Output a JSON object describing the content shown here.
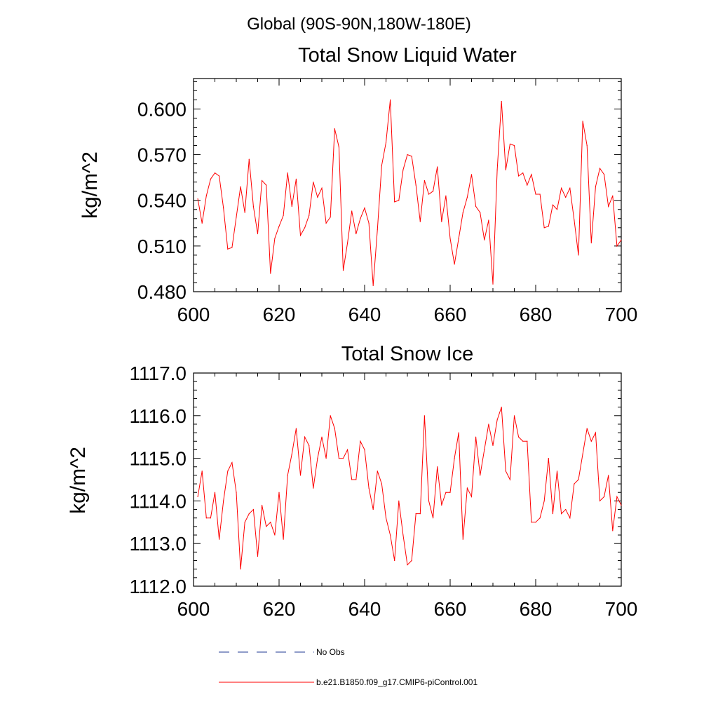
{
  "figure": {
    "suptitle": "Global (90S-90N,180W-180E)",
    "colors": {
      "line": "#ff0000",
      "dash": "#1f3a93",
      "axis": "#000000"
    },
    "legend": {
      "items": [
        {
          "label": "No Obs",
          "style": "dashed",
          "color": "#1f3a93"
        },
        {
          "label": "b.e21.B1850.f09_g17.CMIP6-piControl.001",
          "style": "solid",
          "color": "#ff0000"
        }
      ]
    }
  },
  "chart_data": [
    {
      "type": "line",
      "title": "Total Snow Liquid Water",
      "xlabel": "",
      "ylabel": "kg/m^2",
      "xlim": [
        600,
        700
      ],
      "ylim": [
        0.48,
        0.62
      ],
      "xticks": [
        600,
        620,
        640,
        660,
        680,
        700
      ],
      "xtick_labels": [
        "600",
        "620",
        "640",
        "660",
        "680",
        "700"
      ],
      "yticks": [
        0.48,
        0.51,
        0.54,
        0.57,
        0.6
      ],
      "ytick_labels": [
        "0.480",
        "0.510",
        "0.540",
        "0.570",
        "0.600"
      ],
      "x_start": 601,
      "series": [
        {
          "name": "b.e21.B1850.f09_g17.CMIP6-piControl.001",
          "values": [
            0.541,
            0.525,
            0.543,
            0.554,
            0.558,
            0.556,
            0.535,
            0.508,
            0.509,
            0.529,
            0.549,
            0.532,
            0.567,
            0.536,
            0.518,
            0.553,
            0.55,
            0.492,
            0.515,
            0.523,
            0.53,
            0.558,
            0.536,
            0.554,
            0.517,
            0.522,
            0.53,
            0.552,
            0.542,
            0.548,
            0.525,
            0.529,
            0.587,
            0.575,
            0.494,
            0.512,
            0.533,
            0.518,
            0.528,
            0.535,
            0.525,
            0.484,
            0.521,
            0.563,
            0.578,
            0.606,
            0.539,
            0.54,
            0.56,
            0.57,
            0.569,
            0.55,
            0.526,
            0.553,
            0.544,
            0.546,
            0.562,
            0.526,
            0.543,
            0.515,
            0.498,
            0.515,
            0.532,
            0.542,
            0.557,
            0.536,
            0.532,
            0.514,
            0.527,
            0.485,
            0.56,
            0.605,
            0.56,
            0.577,
            0.576,
            0.556,
            0.558,
            0.55,
            0.557,
            0.544,
            0.544,
            0.522,
            0.523,
            0.537,
            0.534,
            0.548,
            0.542,
            0.548,
            0.527,
            0.504,
            0.592,
            0.576,
            0.512,
            0.549,
            0.561,
            0.557,
            0.536,
            0.543,
            0.51,
            0.514
          ]
        }
      ]
    },
    {
      "type": "line",
      "title": "Total Snow Ice",
      "xlabel": "",
      "ylabel": "kg/m^2",
      "xlim": [
        600,
        700
      ],
      "ylim": [
        1112.0,
        1117.0
      ],
      "xticks": [
        600,
        620,
        640,
        660,
        680,
        700
      ],
      "xtick_labels": [
        "600",
        "620",
        "640",
        "660",
        "680",
        "700"
      ],
      "yticks": [
        1112.0,
        1113.0,
        1114.0,
        1115.0,
        1116.0,
        1117.0
      ],
      "ytick_labels": [
        "1112.0",
        "1113.0",
        "1114.0",
        "1115.0",
        "1116.0",
        "1117.0"
      ],
      "x_start": 601,
      "series": [
        {
          "name": "b.e21.B1850.f09_g17.CMIP6-piControl.001",
          "values": [
            1114.1,
            1114.7,
            1113.6,
            1113.6,
            1114.2,
            1113.1,
            1114.0,
            1114.7,
            1114.9,
            1114.2,
            1112.4,
            1113.5,
            1113.7,
            1113.8,
            1112.7,
            1113.9,
            1113.4,
            1113.5,
            1113.2,
            1114.2,
            1113.1,
            1114.6,
            1115.1,
            1115.7,
            1114.6,
            1115.5,
            1115.3,
            1114.3,
            1115.0,
            1115.5,
            1115.0,
            1116.0,
            1115.7,
            1115.0,
            1115.0,
            1115.2,
            1114.5,
            1114.5,
            1115.4,
            1115.2,
            1114.3,
            1113.8,
            1114.7,
            1114.4,
            1113.6,
            1113.2,
            1112.6,
            1114.0,
            1113.2,
            1112.5,
            1112.6,
            1113.7,
            1113.7,
            1116.0,
            1114.0,
            1113.6,
            1114.8,
            1113.9,
            1114.2,
            1114.2,
            1115.0,
            1115.6,
            1113.1,
            1114.3,
            1114.1,
            1115.5,
            1114.6,
            1115.2,
            1115.8,
            1115.3,
            1115.9,
            1116.2,
            1114.7,
            1114.5,
            1116.0,
            1115.5,
            1115.4,
            1115.4,
            1113.5,
            1113.5,
            1113.6,
            1114.0,
            1115.0,
            1113.7,
            1114.7,
            1113.7,
            1113.8,
            1113.6,
            1114.4,
            1114.5,
            1115.1,
            1115.7,
            1115.4,
            1115.6,
            1114.0,
            1114.1,
            1114.6,
            1113.3,
            1114.1,
            1113.9
          ]
        }
      ]
    }
  ]
}
